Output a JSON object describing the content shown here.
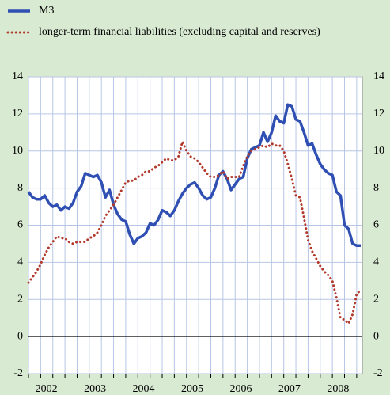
{
  "chart_data": {
    "type": "line",
    "categories": [
      null,
      null,
      null,
      null,
      null,
      "2002",
      null,
      null,
      null,
      null,
      null,
      null,
      null,
      null,
      null,
      null,
      null,
      "2003",
      null,
      null,
      null,
      null,
      null,
      null,
      null,
      null,
      null,
      null,
      null,
      "2004",
      null,
      null,
      null,
      null,
      null,
      null,
      null,
      null,
      null,
      null,
      null,
      "2005",
      null,
      null,
      null,
      null,
      null,
      null,
      null,
      null,
      null,
      null,
      null,
      "2006",
      null,
      null,
      null,
      null,
      null,
      null,
      null,
      null,
      null,
      null,
      null,
      "2007",
      null,
      null,
      null,
      null,
      null,
      null,
      null,
      null,
      null,
      null,
      null,
      "2008",
      null,
      null,
      null,
      null,
      null
    ],
    "series": [
      {
        "name": "M3",
        "color": "#2f4fb3",
        "style": "solid",
        "values": [
          7.8,
          7.5,
          7.4,
          7.4,
          7.6,
          7.2,
          7.0,
          7.1,
          6.8,
          7.0,
          6.9,
          7.2,
          7.8,
          8.1,
          8.8,
          8.7,
          8.6,
          8.7,
          8.3,
          7.5,
          7.9,
          7.1,
          6.6,
          6.3,
          6.2,
          5.5,
          5.0,
          5.3,
          5.4,
          5.6,
          6.1,
          6.0,
          6.3,
          6.8,
          6.7,
          6.5,
          6.8,
          7.3,
          7.7,
          8.0,
          8.2,
          8.3,
          8.0,
          7.6,
          7.4,
          7.5,
          8.0,
          8.7,
          8.9,
          8.5,
          7.9,
          8.2,
          8.5,
          8.6,
          9.6,
          10.1,
          10.2,
          10.3,
          11.0,
          10.5,
          11.0,
          11.9,
          11.6,
          11.5,
          12.5,
          12.4,
          11.7,
          11.6,
          11.0,
          10.3,
          10.4,
          9.8,
          9.3,
          9.0,
          8.8,
          8.7,
          7.8,
          7.6,
          6.0,
          5.8,
          5.0,
          4.9,
          4.9
        ]
      },
      {
        "name": "longer-term financial liabilities (excluding capital and reserves)",
        "color": "#b23a2c",
        "style": "dotted",
        "values": [
          2.9,
          3.2,
          3.5,
          3.9,
          4.4,
          4.8,
          5.1,
          5.4,
          5.3,
          5.3,
          5.1,
          5.0,
          5.1,
          5.1,
          5.1,
          5.3,
          5.4,
          5.6,
          6.0,
          6.5,
          6.8,
          7.1,
          7.5,
          7.9,
          8.3,
          8.4,
          8.4,
          8.6,
          8.7,
          8.9,
          8.9,
          9.1,
          9.2,
          9.4,
          9.6,
          9.5,
          9.5,
          9.7,
          10.5,
          10.0,
          9.7,
          9.6,
          9.4,
          9.1,
          8.8,
          8.6,
          8.6,
          8.7,
          8.9,
          8.5,
          8.6,
          8.6,
          8.6,
          9.2,
          9.7,
          10.0,
          10.1,
          10.2,
          10.3,
          10.2,
          10.4,
          10.3,
          10.3,
          10.0,
          9.3,
          8.5,
          7.6,
          7.5,
          6.4,
          5.2,
          4.6,
          4.2,
          3.8,
          3.5,
          3.3,
          3.0,
          2.1,
          1.0,
          0.9,
          0.7,
          1.2,
          2.3,
          2.5
        ]
      }
    ],
    "ylim": [
      -2,
      14
    ],
    "yticks": [
      -2,
      0,
      2,
      4,
      6,
      8,
      10,
      12,
      14
    ],
    "grid": true
  }
}
